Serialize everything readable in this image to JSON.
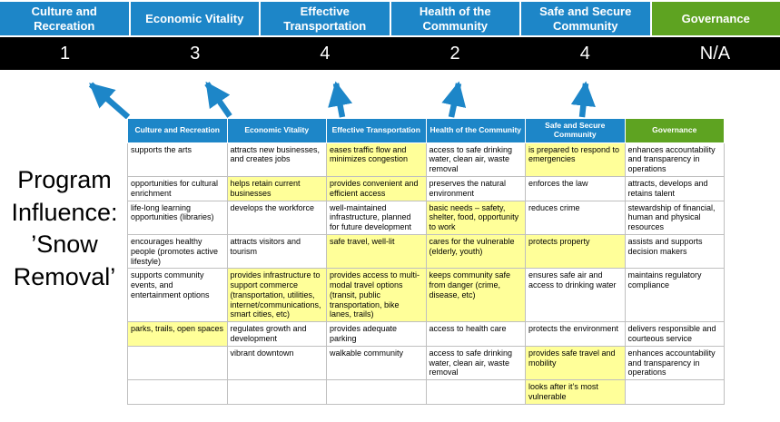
{
  "title": {
    "text": "Program Influence: ’Snow Removal’",
    "display": "Program\nInfluence:\n’Snow\nRemoval’"
  },
  "colors": {
    "blue": "#1d86c8",
    "green": "#5ea321",
    "highlight": "#ffff99",
    "score_band_bg": "#000000"
  },
  "scorecard": {
    "columns": [
      {
        "label": "Culture and Recreation",
        "score": "1",
        "color": "blue"
      },
      {
        "label": "Economic Vitality",
        "score": "3",
        "color": "blue"
      },
      {
        "label": "Effective Transportation",
        "score": "4",
        "color": "blue"
      },
      {
        "label": "Health of the Community",
        "score": "2",
        "color": "blue"
      },
      {
        "label": "Safe and Secure Community",
        "score": "4",
        "color": "blue"
      },
      {
        "label": "Governance",
        "score": "N/A",
        "color": "green"
      }
    ]
  },
  "matrix": {
    "headers": [
      "Culture and Recreation",
      "Economic Vitality",
      "Effective Transportation",
      "Health of the Community",
      "Safe and Secure Community",
      "Governance"
    ],
    "header_colors": [
      "blue",
      "blue",
      "blue",
      "blue",
      "blue",
      "green"
    ],
    "rows": [
      [
        {
          "text": "supports the arts",
          "hl": false
        },
        {
          "text": "attracts new businesses, and creates jobs",
          "hl": false
        },
        {
          "text": "eases traffic flow and minimizes congestion",
          "hl": true
        },
        {
          "text": "access to safe drinking water, clean air, waste removal",
          "hl": false
        },
        {
          "text": "is prepared to respond to emergencies",
          "hl": true
        },
        {
          "text": "enhances accountability and transparency in operations",
          "hl": false
        }
      ],
      [
        {
          "text": "opportunities for cultural enrichment",
          "hl": false
        },
        {
          "text": "helps retain current businesses",
          "hl": true
        },
        {
          "text": "provides convenient and efficient access",
          "hl": true
        },
        {
          "text": "preserves the natural environment",
          "hl": false
        },
        {
          "text": "enforces the law",
          "hl": false
        },
        {
          "text": "attracts, develops and retains talent",
          "hl": false
        }
      ],
      [
        {
          "text": "life-long learning opportunities (libraries)",
          "hl": false
        },
        {
          "text": "develops the workforce",
          "hl": false
        },
        {
          "text": "well-maintained infrastructure, planned for future development",
          "hl": false
        },
        {
          "text": "basic needs – safety, shelter, food, opportunity to work",
          "hl": true
        },
        {
          "text": "reduces crime",
          "hl": false
        },
        {
          "text": "stewardship of financial, human and physical resources",
          "hl": false
        }
      ],
      [
        {
          "text": "encourages healthy people (promotes active lifestyle)",
          "hl": false
        },
        {
          "text": "attracts visitors and tourism",
          "hl": false
        },
        {
          "text": "safe travel, well-lit",
          "hl": true
        },
        {
          "text": "cares for the vulnerable (elderly, youth)",
          "hl": true
        },
        {
          "text": "protects property",
          "hl": true
        },
        {
          "text": "assists and supports decision makers",
          "hl": false
        }
      ],
      [
        {
          "text": "supports community events, and entertainment options",
          "hl": false
        },
        {
          "text": "provides infrastructure to support commerce (transportation, utilities, internet/communications, smart cities, etc)",
          "hl": true
        },
        {
          "text": "provides access to multi-modal travel options (transit, public transportation, bike lanes, trails)",
          "hl": true
        },
        {
          "text": "keeps community safe from danger (crime, disease, etc)",
          "hl": true
        },
        {
          "text": "ensures safe air and access to drinking water",
          "hl": false
        },
        {
          "text": "maintains regulatory compliance",
          "hl": false
        }
      ],
      [
        {
          "text": "parks, trails, open spaces",
          "hl": true
        },
        {
          "text": "regulates growth and development",
          "hl": false
        },
        {
          "text": "provides adequate parking",
          "hl": false
        },
        {
          "text": "access to health care",
          "hl": false
        },
        {
          "text": "protects the environment",
          "hl": false
        },
        {
          "text": "delivers responsible and courteous service",
          "hl": false
        }
      ],
      [
        {
          "text": "",
          "hl": false
        },
        {
          "text": "vibrant downtown",
          "hl": false
        },
        {
          "text": "walkable community",
          "hl": false
        },
        {
          "text": "access to safe drinking water, clean air, waste removal",
          "hl": false
        },
        {
          "text": "provides safe travel and mobility",
          "hl": true
        },
        {
          "text": "enhances accountability and transparency in operations",
          "hl": false
        }
      ],
      [
        {
          "text": "",
          "hl": false
        },
        {
          "text": "",
          "hl": false
        },
        {
          "text": "",
          "hl": false
        },
        {
          "text": "",
          "hl": false
        },
        {
          "text": "looks after it’s most vulnerable",
          "hl": true
        },
        {
          "text": "",
          "hl": false
        }
      ]
    ]
  }
}
